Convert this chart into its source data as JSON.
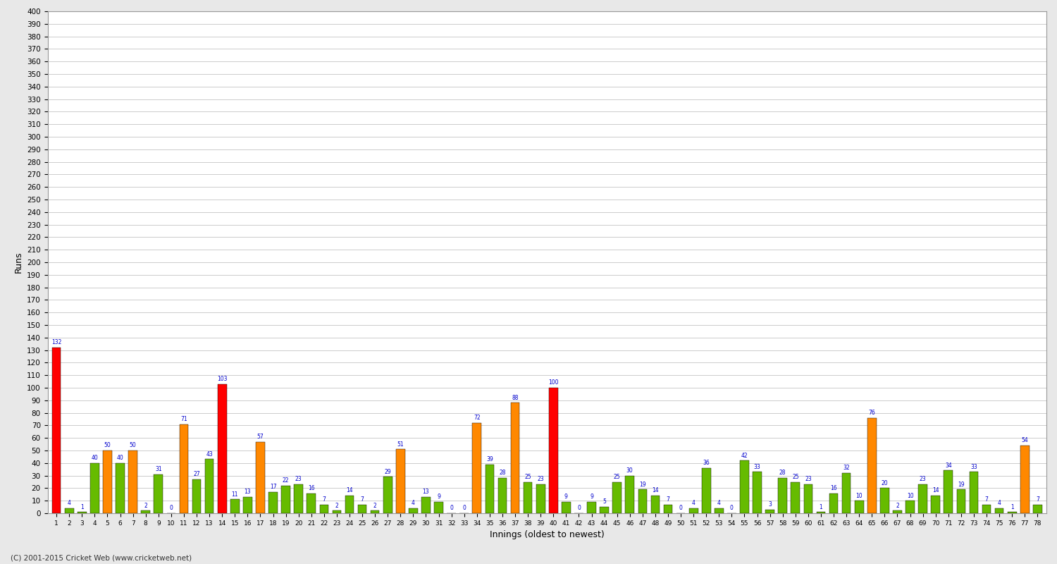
{
  "innings": [
    1,
    2,
    3,
    4,
    5,
    6,
    7,
    8,
    9,
    10,
    11,
    12,
    13,
    14,
    15,
    16,
    17,
    18,
    19,
    20,
    21,
    22,
    23,
    24,
    25,
    26,
    27,
    28,
    29,
    30,
    31,
    32,
    33,
    34,
    35,
    36,
    37,
    38,
    39,
    40,
    41,
    42,
    43,
    44,
    45,
    46,
    47,
    48,
    49,
    50,
    51,
    52,
    53,
    54,
    55,
    56,
    57,
    58,
    59,
    60,
    61,
    62,
    63,
    64,
    65,
    66,
    67,
    68,
    69,
    70,
    71,
    72,
    73,
    74,
    75,
    76,
    77,
    78
  ],
  "scores": [
    132,
    4,
    1,
    40,
    50,
    40,
    50,
    2,
    31,
    0,
    71,
    27,
    43,
    103,
    11,
    13,
    57,
    17,
    22,
    23,
    16,
    7,
    2,
    14,
    7,
    2,
    29,
    51,
    4,
    13,
    9,
    0,
    0,
    72,
    39,
    28,
    88,
    25,
    23,
    100,
    9,
    0,
    9,
    5,
    25,
    30,
    19,
    14,
    7,
    0,
    4,
    36,
    4,
    0,
    42,
    33,
    3,
    28,
    25,
    23,
    1,
    16,
    32,
    10,
    76,
    20,
    2,
    10,
    23,
    14,
    34,
    19,
    33,
    7,
    4,
    1,
    54,
    7
  ],
  "colors": [
    "#ff0000",
    "#66bb00",
    "#66bb00",
    "#66bb00",
    "#ff8800",
    "#66bb00",
    "#ff8800",
    "#66bb00",
    "#66bb00",
    "#66bb00",
    "#ff8800",
    "#66bb00",
    "#66bb00",
    "#ff0000",
    "#66bb00",
    "#66bb00",
    "#ff8800",
    "#66bb00",
    "#66bb00",
    "#66bb00",
    "#66bb00",
    "#66bb00",
    "#66bb00",
    "#66bb00",
    "#66bb00",
    "#66bb00",
    "#66bb00",
    "#ff8800",
    "#66bb00",
    "#66bb00",
    "#66bb00",
    "#66bb00",
    "#66bb00",
    "#ff8800",
    "#66bb00",
    "#66bb00",
    "#ff8800",
    "#66bb00",
    "#66bb00",
    "#ff0000",
    "#66bb00",
    "#66bb00",
    "#66bb00",
    "#66bb00",
    "#66bb00",
    "#66bb00",
    "#66bb00",
    "#66bb00",
    "#66bb00",
    "#66bb00",
    "#66bb00",
    "#66bb00",
    "#66bb00",
    "#66bb00",
    "#66bb00",
    "#66bb00",
    "#66bb00",
    "#66bb00",
    "#66bb00",
    "#66bb00",
    "#66bb00",
    "#66bb00",
    "#66bb00",
    "#66bb00",
    "#ff8800",
    "#66bb00",
    "#66bb00",
    "#66bb00",
    "#66bb00",
    "#66bb00",
    "#66bb00",
    "#66bb00",
    "#66bb00",
    "#66bb00",
    "#66bb00",
    "#66bb00",
    "#ff8800",
    "#66bb00"
  ],
  "ylabel": "Runs",
  "xlabel": "Innings (oldest to newest)",
  "ylim": [
    0,
    400
  ],
  "yticks": [
    0,
    10,
    20,
    30,
    40,
    50,
    60,
    70,
    80,
    90,
    100,
    110,
    120,
    130,
    140,
    150,
    160,
    170,
    180,
    190,
    200,
    210,
    220,
    230,
    240,
    250,
    260,
    270,
    280,
    290,
    300,
    310,
    320,
    330,
    340,
    350,
    360,
    370,
    380,
    390,
    400
  ],
  "background_color": "#e8e8e8",
  "plot_bg_color": "#ffffff",
  "grid_color": "#cccccc",
  "bar_edge_color": "#000000",
  "label_color": "#0000cc",
  "footer_text": "(C) 2001-2015 Cricket Web (www.cricketweb.net)"
}
